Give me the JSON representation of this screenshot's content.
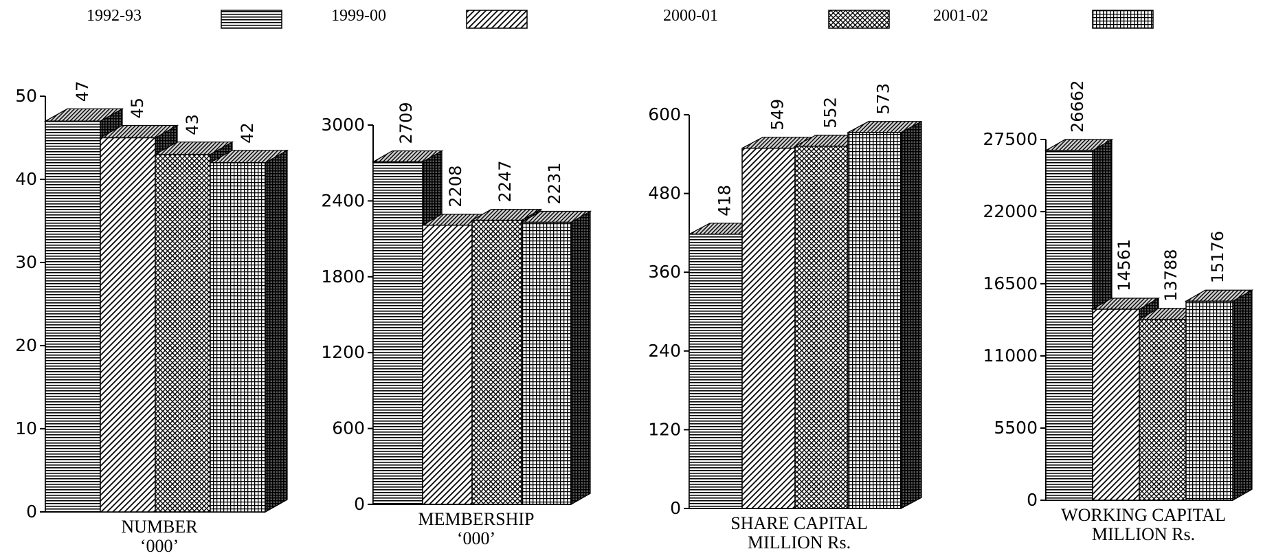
{
  "legend": [
    {
      "label": "1992-93",
      "pattern": "horizontal-lines"
    },
    {
      "label": "1999-00",
      "pattern": "diagonal-lines"
    },
    {
      "label": "2000-01",
      "pattern": "crosshatch-fine"
    },
    {
      "label": "2001-02",
      "pattern": "grid"
    }
  ],
  "colors": {
    "ink": "#000000",
    "background": "#ffffff",
    "side_face": "#555555",
    "top_face": "#bbbbbb"
  },
  "chart_data": [
    {
      "type": "bar",
      "style": "3d-bars",
      "categories": [
        "1992-93",
        "1999-00",
        "2000-01",
        "2001-02"
      ],
      "values": [
        47,
        45,
        43,
        42
      ],
      "data_labels": [
        "47",
        "45",
        "43",
        "42"
      ],
      "xlabel": "NUMBER",
      "xlabel_2": "‘000’",
      "ylim": [
        0,
        50
      ],
      "yticks": [
        0,
        10,
        20,
        30,
        40,
        50
      ],
      "ytick_labels": [
        "0",
        "10",
        "20",
        "30",
        "40",
        "50"
      ],
      "grid": false
    },
    {
      "type": "bar",
      "style": "3d-bars",
      "categories": [
        "1992-93",
        "1999-00",
        "2000-01",
        "2001-02"
      ],
      "values": [
        2709,
        2208,
        2247,
        2231
      ],
      "data_labels": [
        "2709",
        "2208",
        "2247",
        "2231"
      ],
      "xlabel": "MEMBERSHIP",
      "xlabel_2": "‘000’",
      "ylim": [
        0,
        3000
      ],
      "yticks": [
        0,
        600,
        1200,
        1800,
        2400,
        3000
      ],
      "ytick_labels": [
        "0",
        "600",
        "1200",
        "1800",
        "2400",
        "3000"
      ],
      "grid": false
    },
    {
      "type": "bar",
      "style": "3d-bars",
      "categories": [
        "1992-93",
        "1999-00",
        "2000-01",
        "2001-02"
      ],
      "values": [
        418,
        549,
        552,
        573
      ],
      "data_labels": [
        "418",
        "549",
        "552",
        "573"
      ],
      "xlabel": "SHARE CAPITAL",
      "xlabel_2": "MILLION Rs.",
      "ylim": [
        0,
        600
      ],
      "yticks": [
        0,
        120,
        240,
        360,
        480,
        600
      ],
      "ytick_labels": [
        "0",
        "120",
        "240",
        "360",
        "480",
        "600"
      ],
      "grid": false
    },
    {
      "type": "bar",
      "style": "3d-bars",
      "categories": [
        "1992-93",
        "1999-00",
        "2000-01",
        "2001-02"
      ],
      "values": [
        26662,
        14561,
        13788,
        15176
      ],
      "data_labels": [
        "26662",
        "14561",
        "13788",
        "15176"
      ],
      "xlabel": "WORKING CAPITAL",
      "xlabel_2": "MILLION Rs.",
      "ylim": [
        0,
        27500
      ],
      "yticks": [
        0,
        5500,
        11000,
        16500,
        22000,
        27500
      ],
      "ytick_labels": [
        "0",
        "5500",
        "11000",
        "16500",
        "22000",
        "27500"
      ],
      "grid": false
    }
  ]
}
